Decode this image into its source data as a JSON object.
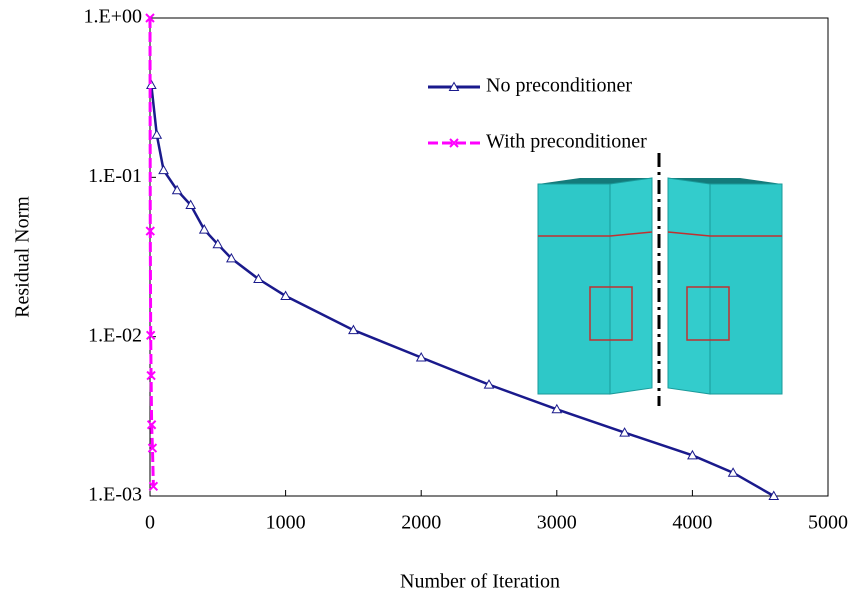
{
  "chart_data": {
    "type": "line",
    "xlabel": "Number of Iteration",
    "ylabel": "Residual Norm",
    "xlim": [
      0,
      5000
    ],
    "xticks": [
      0,
      1000,
      2000,
      3000,
      4000,
      5000
    ],
    "ylim": [
      0.001,
      1
    ],
    "log_y": true,
    "yticks": [
      {
        "value": 1,
        "label": "1.E+00"
      },
      {
        "value": 0.1,
        "label": "1.E-01"
      },
      {
        "value": 0.01,
        "label": "1.E-02"
      },
      {
        "value": 0.001,
        "label": "1.E-03"
      }
    ],
    "legend": "upper right",
    "series": [
      {
        "name": "No preconditioner",
        "color": "#1a1a8c",
        "marker": "triangle",
        "x": [
          10,
          50,
          100,
          200,
          300,
          400,
          500,
          600,
          800,
          1000,
          1500,
          2000,
          2500,
          3000,
          3500,
          4000,
          4300,
          4600
        ],
        "values": [
          0.38,
          0.185,
          0.111,
          0.083,
          0.067,
          0.047,
          0.038,
          0.031,
          0.023,
          0.018,
          0.011,
          0.0074,
          0.005,
          0.0035,
          0.0025,
          0.0018,
          0.0014,
          0.001
        ]
      },
      {
        "name": "With preconditioner",
        "color": "#ff00ff",
        "marker": "x",
        "x": [
          0,
          2,
          5,
          8,
          12,
          18,
          25
        ],
        "values": [
          1,
          0.046,
          0.0102,
          0.0057,
          0.0028,
          0.002,
          0.00115
        ]
      }
    ]
  }
}
